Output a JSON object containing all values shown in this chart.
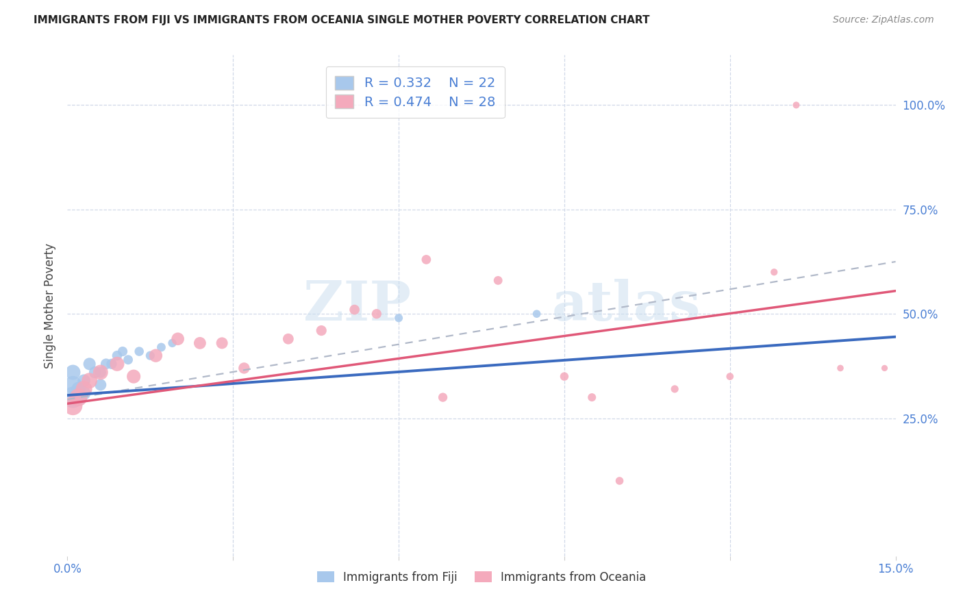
{
  "title": "IMMIGRANTS FROM FIJI VS IMMIGRANTS FROM OCEANIA SINGLE MOTHER POVERTY CORRELATION CHART",
  "source": "Source: ZipAtlas.com",
  "ylabel": "Single Mother Poverty",
  "fiji_R": 0.332,
  "fiji_N": 22,
  "oceania_R": 0.474,
  "oceania_N": 28,
  "fiji_color": "#a8c8ec",
  "oceania_color": "#f4aabc",
  "fiji_line_color": "#3a6abf",
  "oceania_line_color": "#e05878",
  "dashed_line_color": "#b0b8c8",
  "right_tick_color": "#4a7fd4",
  "xtick_color": "#4a7fd4",
  "xlim": [
    0.0,
    0.15
  ],
  "ylim": [
    -0.08,
    1.12
  ],
  "ytick_vals": [
    0.25,
    0.5,
    0.75,
    1.0
  ],
  "ytick_labels": [
    "25.0%",
    "50.0%",
    "75.0%",
    "100.0%"
  ],
  "fiji_x": [
    0.001,
    0.001,
    0.001,
    0.002,
    0.002,
    0.003,
    0.003,
    0.004,
    0.005,
    0.006,
    0.006,
    0.007,
    0.008,
    0.009,
    0.01,
    0.011,
    0.013,
    0.015,
    0.017,
    0.019,
    0.06,
    0.085
  ],
  "fiji_y": [
    0.3,
    0.33,
    0.36,
    0.3,
    0.32,
    0.31,
    0.34,
    0.38,
    0.36,
    0.33,
    0.36,
    0.38,
    0.38,
    0.4,
    0.41,
    0.39,
    0.41,
    0.4,
    0.42,
    0.43,
    0.49,
    0.5
  ],
  "fiji_sizes": [
    500,
    350,
    250,
    300,
    220,
    200,
    180,
    170,
    160,
    150,
    140,
    130,
    120,
    110,
    105,
    100,
    95,
    90,
    85,
    80,
    75,
    70
  ],
  "oceania_x": [
    0.001,
    0.002,
    0.003,
    0.004,
    0.006,
    0.009,
    0.012,
    0.016,
    0.02,
    0.024,
    0.028,
    0.032,
    0.04,
    0.046,
    0.052,
    0.056,
    0.065,
    0.068,
    0.078,
    0.09,
    0.095,
    0.1,
    0.11,
    0.12,
    0.128,
    0.132,
    0.14,
    0.148
  ],
  "oceania_y": [
    0.28,
    0.3,
    0.32,
    0.34,
    0.36,
    0.38,
    0.35,
    0.4,
    0.44,
    0.43,
    0.43,
    0.37,
    0.44,
    0.46,
    0.51,
    0.5,
    0.63,
    0.3,
    0.58,
    0.35,
    0.3,
    0.1,
    0.32,
    0.35,
    0.6,
    1.0,
    0.37,
    0.37
  ],
  "oceania_sizes": [
    400,
    350,
    300,
    270,
    250,
    230,
    210,
    195,
    180,
    165,
    150,
    140,
    130,
    120,
    112,
    105,
    98,
    92,
    86,
    80,
    75,
    70,
    65,
    60,
    55,
    52,
    48,
    44
  ],
  "fiji_trend_x": [
    0.0,
    0.15
  ],
  "fiji_trend_y": [
    0.305,
    0.445
  ],
  "oceania_trend_x": [
    0.0,
    0.15
  ],
  "oceania_trend_y": [
    0.285,
    0.555
  ],
  "dashed_trend_x": [
    0.0,
    0.15
  ],
  "dashed_trend_y": [
    0.295,
    0.625
  ],
  "watermark_zip": "ZIP",
  "watermark_atlas": "atlas"
}
